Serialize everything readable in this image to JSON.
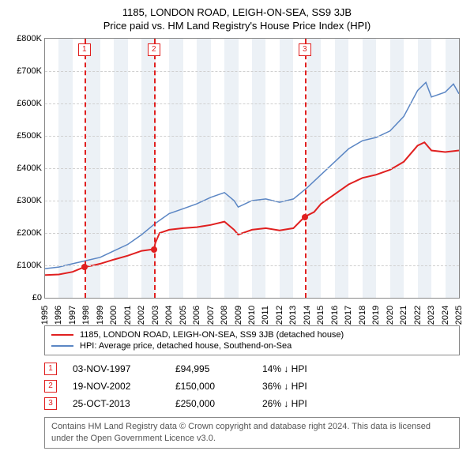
{
  "title": "1185, LONDON ROAD, LEIGH-ON-SEA, SS9 3JB",
  "subtitle": "Price paid vs. HM Land Registry's House Price Index (HPI)",
  "chart": {
    "type": "line",
    "background_color": "#ffffff",
    "grid_color": "#d0d0d0",
    "band_color": "#eaeff5",
    "xlim": [
      1995,
      2025
    ],
    "ylim": [
      0,
      800000
    ],
    "yticks": [
      0,
      100000,
      200000,
      300000,
      400000,
      500000,
      600000,
      700000,
      800000
    ],
    "ytick_labels": [
      "£0",
      "£100K",
      "£200K",
      "£300K",
      "£400K",
      "£500K",
      "£600K",
      "£700K",
      "£800K"
    ],
    "xticks": [
      1995,
      1996,
      1997,
      1998,
      1999,
      2000,
      2001,
      2002,
      2003,
      2004,
      2005,
      2006,
      2007,
      2008,
      2009,
      2010,
      2011,
      2012,
      2013,
      2014,
      2015,
      2016,
      2017,
      2018,
      2019,
      2020,
      2021,
      2022,
      2023,
      2024,
      2025
    ],
    "series": [
      {
        "name": "property",
        "color": "#e02020",
        "width": 2,
        "points": [
          [
            1995,
            70000
          ],
          [
            1996,
            72000
          ],
          [
            1997,
            80000
          ],
          [
            1997.85,
            94995
          ],
          [
            1998.5,
            100000
          ],
          [
            1999,
            105000
          ],
          [
            2000,
            118000
          ],
          [
            2001,
            130000
          ],
          [
            2002,
            145000
          ],
          [
            2002.89,
            150000
          ],
          [
            2003,
            170000
          ],
          [
            2003.3,
            200000
          ],
          [
            2004,
            210000
          ],
          [
            2005,
            215000
          ],
          [
            2006,
            218000
          ],
          [
            2007,
            225000
          ],
          [
            2008,
            235000
          ],
          [
            2008.7,
            210000
          ],
          [
            2009,
            195000
          ],
          [
            2010,
            210000
          ],
          [
            2011,
            215000
          ],
          [
            2012,
            208000
          ],
          [
            2013,
            215000
          ],
          [
            2013.82,
            250000
          ],
          [
            2014.5,
            265000
          ],
          [
            2015,
            290000
          ],
          [
            2016,
            320000
          ],
          [
            2017,
            350000
          ],
          [
            2018,
            370000
          ],
          [
            2019,
            380000
          ],
          [
            2020,
            395000
          ],
          [
            2021,
            420000
          ],
          [
            2022,
            470000
          ],
          [
            2022.5,
            480000
          ],
          [
            2023,
            455000
          ],
          [
            2024,
            450000
          ],
          [
            2025,
            455000
          ]
        ]
      },
      {
        "name": "hpi",
        "color": "#5b86c4",
        "width": 1.5,
        "points": [
          [
            1995,
            90000
          ],
          [
            1996,
            95000
          ],
          [
            1997,
            105000
          ],
          [
            1998,
            115000
          ],
          [
            1999,
            125000
          ],
          [
            2000,
            145000
          ],
          [
            2001,
            165000
          ],
          [
            2002,
            195000
          ],
          [
            2003,
            230000
          ],
          [
            2004,
            260000
          ],
          [
            2005,
            275000
          ],
          [
            2006,
            290000
          ],
          [
            2007,
            310000
          ],
          [
            2008,
            325000
          ],
          [
            2008.7,
            300000
          ],
          [
            2009,
            280000
          ],
          [
            2010,
            300000
          ],
          [
            2011,
            305000
          ],
          [
            2012,
            295000
          ],
          [
            2013,
            305000
          ],
          [
            2014,
            340000
          ],
          [
            2015,
            380000
          ],
          [
            2016,
            420000
          ],
          [
            2017,
            460000
          ],
          [
            2018,
            485000
          ],
          [
            2019,
            495000
          ],
          [
            2020,
            515000
          ],
          [
            2021,
            560000
          ],
          [
            2022,
            640000
          ],
          [
            2022.6,
            665000
          ],
          [
            2023,
            620000
          ],
          [
            2024,
            635000
          ],
          [
            2024.6,
            660000
          ],
          [
            2025,
            630000
          ]
        ]
      }
    ],
    "markers": [
      {
        "id": "1",
        "x": 1997.85,
        "y": 94995
      },
      {
        "id": "2",
        "x": 2002.89,
        "y": 150000
      },
      {
        "id": "3",
        "x": 2013.82,
        "y": 250000
      }
    ]
  },
  "legend": {
    "items": [
      {
        "color": "#e02020",
        "label": "1185, LONDON ROAD, LEIGH-ON-SEA, SS9 3JB (detached house)"
      },
      {
        "color": "#5b86c4",
        "label": "HPI: Average price, detached house, Southend-on-Sea"
      }
    ]
  },
  "sales": [
    {
      "id": "1",
      "date": "03-NOV-1997",
      "price": "£94,995",
      "pct": "14% ↓ HPI"
    },
    {
      "id": "2",
      "date": "19-NOV-2002",
      "price": "£150,000",
      "pct": "36% ↓ HPI"
    },
    {
      "id": "3",
      "date": "25-OCT-2013",
      "price": "£250,000",
      "pct": "26% ↓ HPI"
    }
  ],
  "attribution": "Contains HM Land Registry data © Crown copyright and database right 2024. This data is licensed under the Open Government Licence v3.0."
}
